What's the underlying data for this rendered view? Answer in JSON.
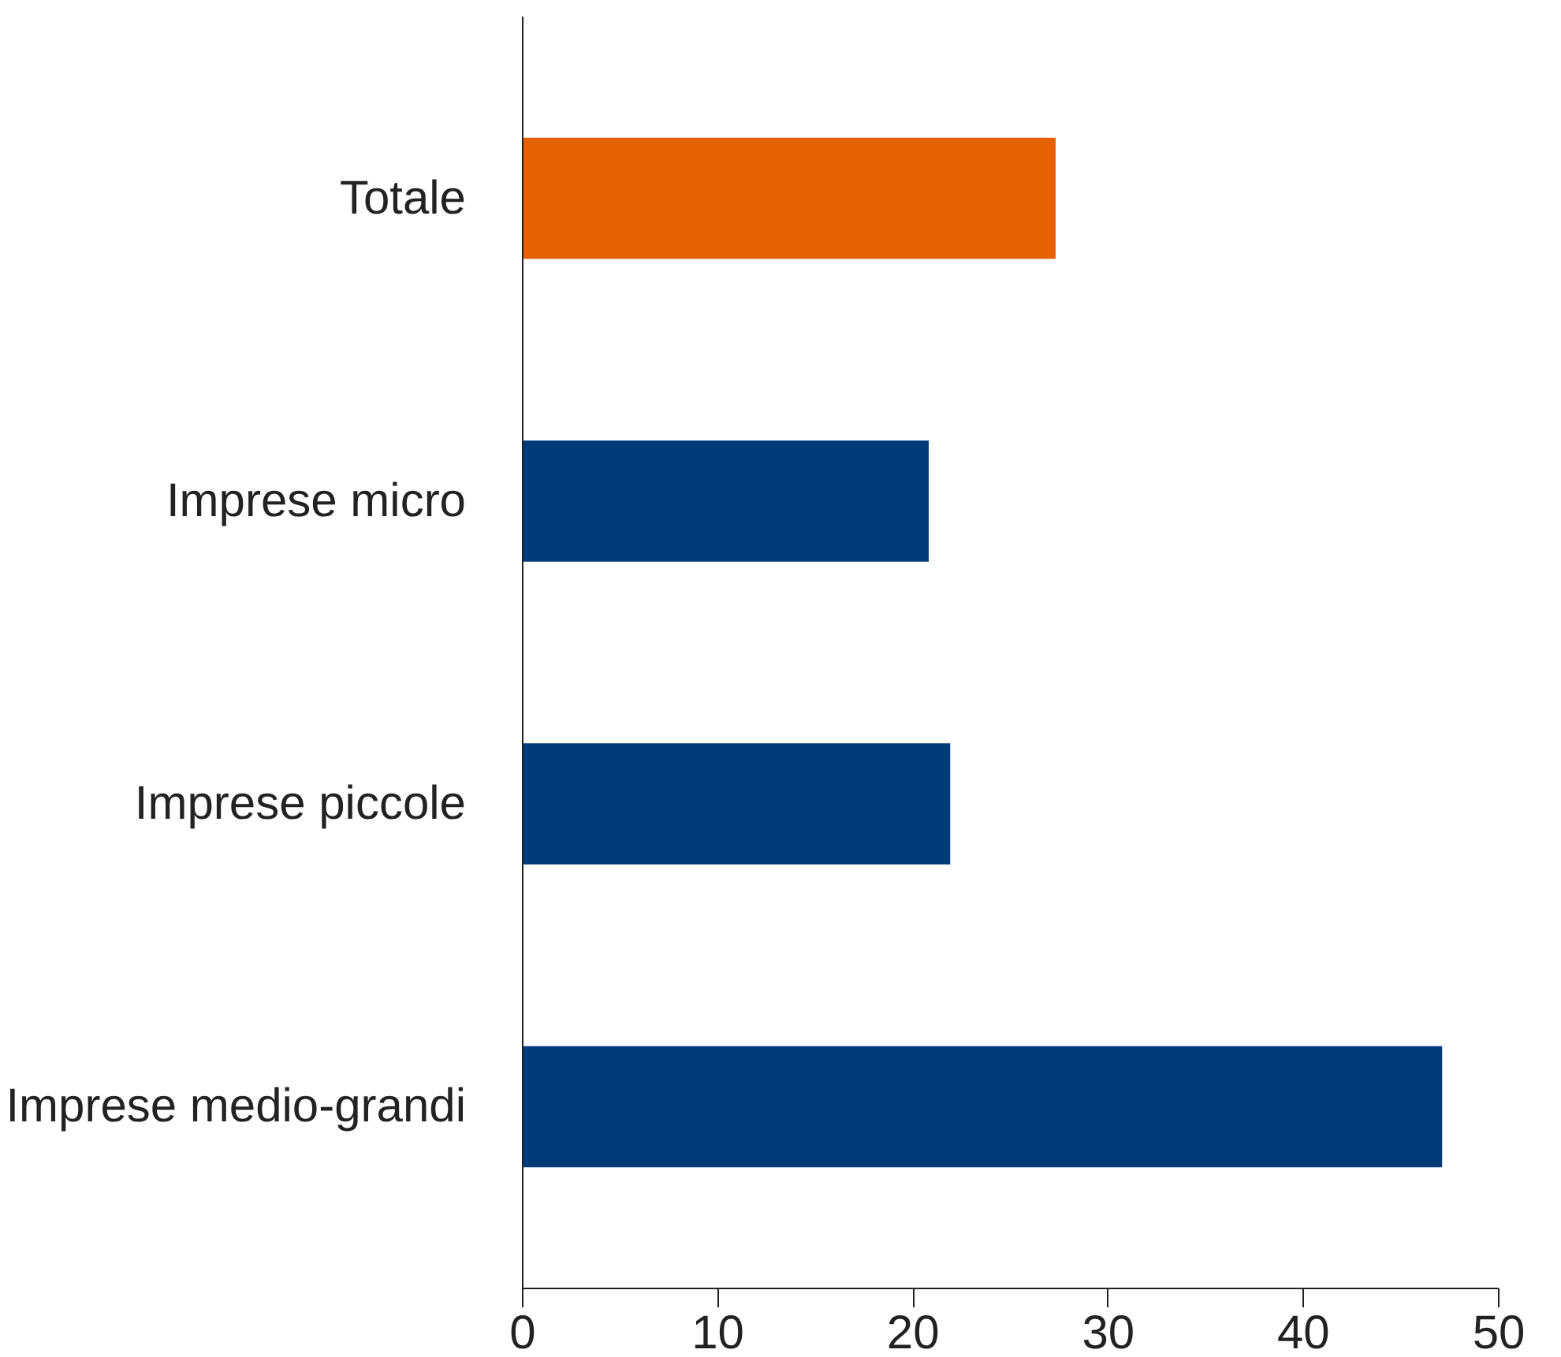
{
  "chart_data": {
    "type": "bar",
    "orientation": "horizontal",
    "categories": [
      "Totale",
      "Imprese micro",
      "Imprese piccole",
      "Imprese medio-grandi"
    ],
    "values": [
      27.3,
      20.8,
      21.9,
      47.1
    ],
    "colors": [
      "#e86100",
      "#003b7a",
      "#003b7a",
      "#003b7a"
    ],
    "xlim": [
      0,
      50
    ],
    "xticks": [
      0,
      10,
      20,
      30,
      40,
      50
    ],
    "grid": false
  }
}
